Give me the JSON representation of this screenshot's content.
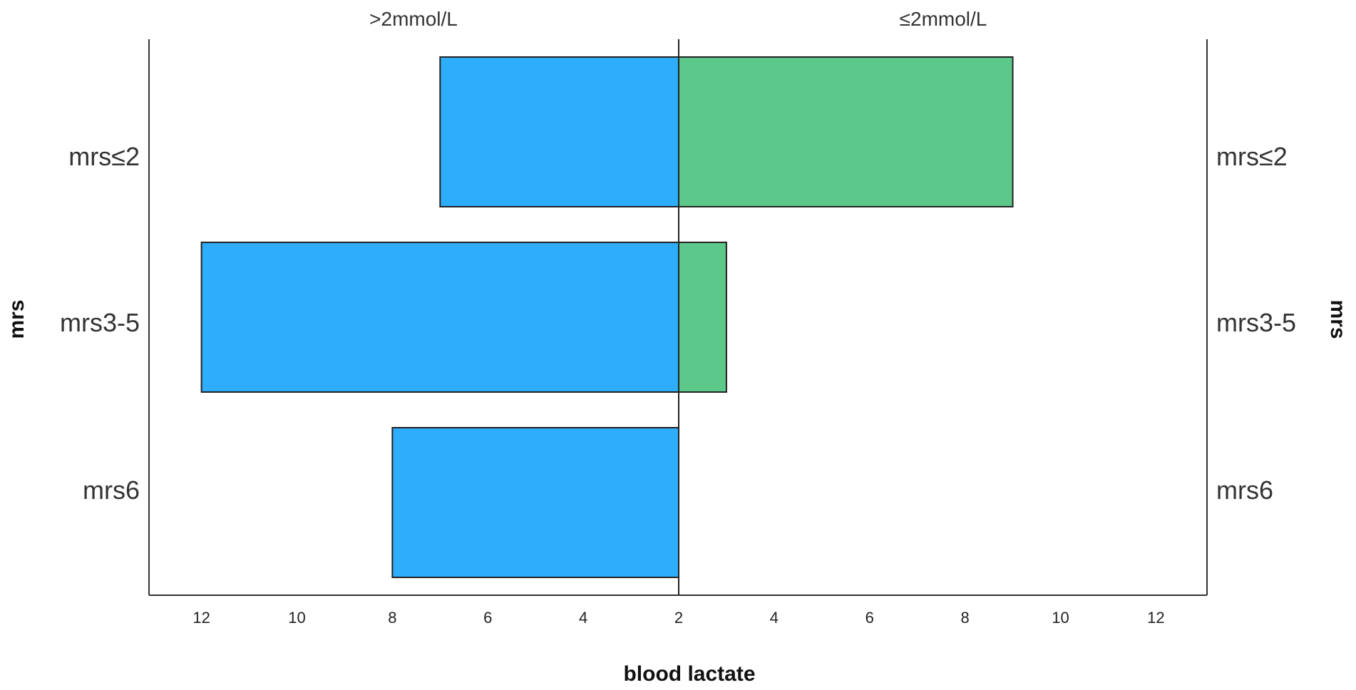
{
  "chart_data": {
    "type": "bar",
    "orientation": "horizontal",
    "layout": "back-to-back population pyramid",
    "categories": [
      "mrs≤2",
      "mrs3-5",
      "mrs6"
    ],
    "series": [
      {
        "name": ">2mmol/L",
        "side": "left",
        "color": "#2eadfd",
        "values": [
          7,
          12,
          8
        ]
      },
      {
        "name": "≤2mmol/L",
        "side": "right",
        "color": "#5cc98a",
        "values": [
          9,
          3,
          2
        ]
      }
    ],
    "xlabel": "blood lactate",
    "ylabel_left": "mrs",
    "ylabel_right": "mrs",
    "tick_labels": {
      "left": [
        "12",
        "10",
        "8",
        "6",
        "4",
        "2"
      ],
      "right": [
        "4",
        "6",
        "8",
        "10",
        "12"
      ]
    },
    "xlim": [
      2,
      13.1
    ],
    "grid": false,
    "legend": "none"
  }
}
